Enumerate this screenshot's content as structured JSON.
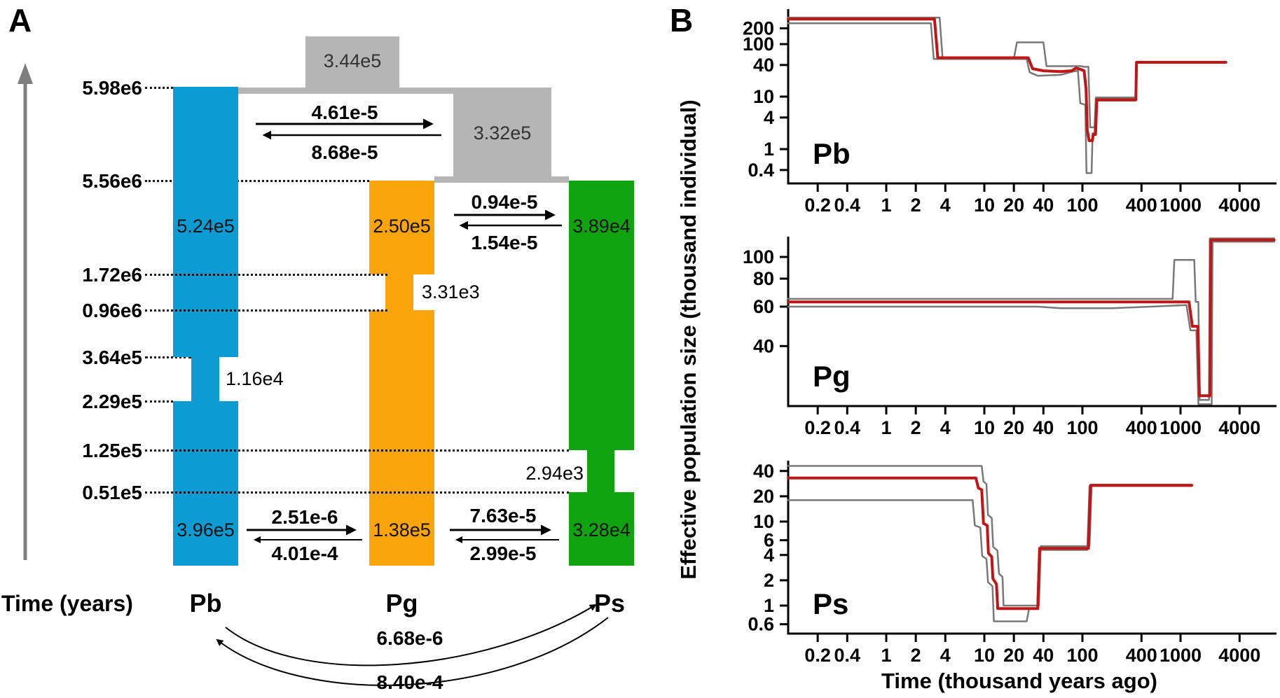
{
  "figure": {
    "panel_a_label": "A",
    "panel_b_label": "B"
  },
  "panel_a": {
    "time_axis_label": "Time (years)",
    "time_ticks": [
      "5.98e6",
      "5.56e6",
      "1.72e6",
      "0.96e6",
      "3.64e5",
      "2.29e5",
      "1.25e5",
      "0.51e5"
    ],
    "ancestral_boxes": [
      {
        "name": "root-ancestor",
        "size": "3.44e5",
        "color": "#b5b5b5"
      },
      {
        "name": "pg-ps-ancestor",
        "size": "3.32e5",
        "color": "#b5b5b5"
      }
    ],
    "populations": [
      {
        "name": "Pb",
        "color": "#0d9bd4",
        "size_upper": "5.24e5",
        "size_bottleneck": "1.16e4",
        "size_lower": "3.96e5"
      },
      {
        "name": "Pg",
        "color": "#fca40b",
        "size_upper": "2.50e5",
        "size_bottleneck": "3.31e3",
        "size_lower": "1.38e5"
      },
      {
        "name": "Ps",
        "color": "#0fa30f",
        "size_upper": "3.89e4",
        "size_bottleneck": "2.94e3",
        "size_lower": "3.28e4"
      }
    ],
    "migration_pairs": [
      {
        "between": "Pb and Pg+Ps ancestor",
        "forward": "4.61e-5",
        "backward": "8.68e-5"
      },
      {
        "between": "Pg and Ps ancient",
        "forward": "0.94e-5",
        "backward": "1.54e-5"
      },
      {
        "between": "Pb and Pg recent",
        "forward": "2.51e-6",
        "backward": "4.01e-4"
      },
      {
        "between": "Pg and Ps recent",
        "forward": "7.63e-5",
        "backward": "2.99e-5"
      },
      {
        "between": "Pb and Ps long arc",
        "forward": "6.68e-6",
        "backward": "8.40e-4"
      }
    ]
  },
  "panel_b": {
    "xlabel": "Time (thousand years ago)",
    "ylabel": "Effective population size (thousand individual)",
    "line_colors": {
      "median": "#c01616",
      "ci": "#787878"
    }
  },
  "chart_data": [
    {
      "type": "line",
      "title": "Pb",
      "xscale": "log",
      "yscale": "log",
      "xlabel": "Time (thousand years ago)",
      "ylabel": "Effective population size (thousand individual)",
      "xlim": [
        0.1,
        9500
      ],
      "ylim": [
        0.33,
        330
      ],
      "grid": false,
      "legend": false,
      "x_ticks": [
        "0.2",
        "0.4",
        "1",
        "2",
        "4",
        "10",
        "20",
        "40",
        "100",
        "400",
        "1000",
        "4000"
      ],
      "y_ticks": [
        "200",
        "100",
        "40",
        "10",
        "4",
        "1",
        "0.4"
      ],
      "series": [
        {
          "name": "ci_upper",
          "points": [
            [
              0.1,
              320
            ],
            [
              3.5,
              320
            ],
            [
              3.75,
              53
            ],
            [
              20,
              53
            ],
            [
              21.5,
              108
            ],
            [
              40,
              108
            ],
            [
              43,
              38
            ],
            [
              98,
              38
            ],
            [
              103,
              37
            ],
            [
              115,
              37
            ],
            [
              120,
              2.6
            ],
            [
              133,
              2.6
            ],
            [
              137,
              9.6
            ],
            [
              350,
              9.6
            ],
            [
              356,
              46
            ],
            [
              2900,
              46
            ]
          ]
        },
        {
          "name": "ci_lower",
          "points": [
            [
              0.1,
              250
            ],
            [
              2.85,
              250
            ],
            [
              3.05,
              52
            ],
            [
              27,
              52
            ],
            [
              29,
              29
            ],
            [
              35,
              25
            ],
            [
              60,
              26
            ],
            [
              80,
              30
            ],
            [
              90,
              31
            ],
            [
              95,
              7.5
            ],
            [
              107,
              7
            ],
            [
              110,
              0.35
            ],
            [
              124,
              0.35
            ],
            [
              127,
              2.0
            ],
            [
              133,
              2.0
            ],
            [
              137,
              8.4
            ],
            [
              350,
              8.4
            ],
            [
              356,
              44
            ],
            [
              2900,
              44
            ]
          ]
        },
        {
          "name": "median",
          "points": [
            [
              0.1,
              300
            ],
            [
              3.1,
              300
            ],
            [
              3.35,
              55
            ],
            [
              28,
              55
            ],
            [
              31,
              34
            ],
            [
              40,
              31
            ],
            [
              60,
              30
            ],
            [
              78,
              31
            ],
            [
              86,
              35
            ],
            [
              96,
              33
            ],
            [
              104,
              31
            ],
            [
              109,
              14
            ],
            [
              112,
              2.3
            ],
            [
              117,
              1.45
            ],
            [
              126,
              1.45
            ],
            [
              129,
              1.9
            ],
            [
              136,
              1.9
            ],
            [
              140,
              8.7
            ],
            [
              350,
              8.7
            ],
            [
              356,
              45
            ],
            [
              2900,
              45
            ]
          ]
        }
      ]
    },
    {
      "type": "line",
      "title": "Pg",
      "xscale": "log",
      "yscale": "log",
      "xlabel": "Time (thousand years ago)",
      "ylabel": "Effective population size (thousand individual)",
      "xlim": [
        0.1,
        9500
      ],
      "ylim": [
        21,
        125
      ],
      "grid": false,
      "legend": false,
      "x_ticks": [
        "0.2",
        "0.4",
        "1",
        "2",
        "4",
        "10",
        "20",
        "40",
        "100",
        "400",
        "1000",
        "4000"
      ],
      "y_ticks": [
        "100",
        "80",
        "60",
        "40"
      ],
      "series": [
        {
          "name": "ci_upper",
          "points": [
            [
              0.1,
              65
            ],
            [
              830,
              65
            ],
            [
              865,
              97
            ],
            [
              1380,
              97
            ],
            [
              1430,
              63
            ],
            [
              1520,
              63
            ],
            [
              1570,
              23
            ],
            [
              1950,
              23
            ],
            [
              1990,
              121
            ],
            [
              9000,
              121
            ]
          ]
        },
        {
          "name": "ci_lower",
          "points": [
            [
              0.1,
              60
            ],
            [
              35,
              60
            ],
            [
              60,
              59
            ],
            [
              200,
              59
            ],
            [
              500,
              60
            ],
            [
              1150,
              61
            ],
            [
              1260,
              47
            ],
            [
              1450,
              47
            ],
            [
              1520,
              22
            ],
            [
              2080,
              22
            ],
            [
              2120,
              117
            ],
            [
              9000,
              117
            ]
          ]
        },
        {
          "name": "median",
          "points": [
            [
              0.1,
              63
            ],
            [
              1220,
              63
            ],
            [
              1320,
              49
            ],
            [
              1500,
              49
            ],
            [
              1560,
              24
            ],
            [
              2000,
              24
            ],
            [
              2040,
              119
            ],
            [
              9000,
              119
            ]
          ]
        }
      ]
    },
    {
      "type": "line",
      "title": "Ps",
      "xscale": "log",
      "yscale": "log",
      "xlabel": "Time (thousand years ago)",
      "ylabel": "Effective population size (thousand individual)",
      "xlim": [
        0.1,
        9500
      ],
      "ylim": [
        0.45,
        55
      ],
      "grid": false,
      "legend": false,
      "x_ticks": [
        "0.2",
        "0.4",
        "1",
        "2",
        "4",
        "10",
        "20",
        "40",
        "100",
        "400",
        "1000",
        "4000"
      ],
      "y_ticks": [
        "40",
        "20",
        "10",
        "6",
        "4",
        "2",
        "1",
        "0.6"
      ],
      "series": [
        {
          "name": "ci_upper",
          "points": [
            [
              0.1,
              46
            ],
            [
              9.4,
              46
            ],
            [
              9.8,
              30
            ],
            [
              10.5,
              28
            ],
            [
              10.9,
              12
            ],
            [
              11.9,
              11
            ],
            [
              12.3,
              5
            ],
            [
              13.6,
              4.5
            ],
            [
              14.1,
              2.4
            ],
            [
              15.3,
              2.2
            ],
            [
              15.7,
              1.0
            ],
            [
              36,
              1.0
            ],
            [
              37.6,
              5.1
            ],
            [
              118,
              5.1
            ],
            [
              124,
              27.5
            ],
            [
              1300,
              27.5
            ]
          ]
        },
        {
          "name": "ci_lower",
          "points": [
            [
              0.1,
              18
            ],
            [
              7.6,
              18
            ],
            [
              8.0,
              9
            ],
            [
              9.1,
              8.5
            ],
            [
              9.5,
              3.9
            ],
            [
              10.5,
              3.6
            ],
            [
              10.9,
              1.9
            ],
            [
              12.1,
              1.7
            ],
            [
              12.5,
              0.65
            ],
            [
              27,
              0.65
            ],
            [
              28.6,
              0.92
            ],
            [
              34.6,
              0.92
            ],
            [
              36.1,
              4.6
            ],
            [
              112,
              4.6
            ],
            [
              118,
              26.5
            ],
            [
              1300,
              26.5
            ]
          ]
        },
        {
          "name": "median",
          "points": [
            [
              0.1,
              33
            ],
            [
              8.2,
              33
            ],
            [
              8.7,
              25
            ],
            [
              9.4,
              24
            ],
            [
              9.8,
              9.5
            ],
            [
              10.7,
              9
            ],
            [
              11,
              4.2
            ],
            [
              11.9,
              3.8
            ],
            [
              12.2,
              2.1
            ],
            [
              13.3,
              1.8
            ],
            [
              13.7,
              0.92
            ],
            [
              35,
              0.92
            ],
            [
              36.6,
              4.8
            ],
            [
              115,
              4.8
            ],
            [
              121,
              27
            ],
            [
              1300,
              27
            ]
          ]
        }
      ]
    }
  ]
}
